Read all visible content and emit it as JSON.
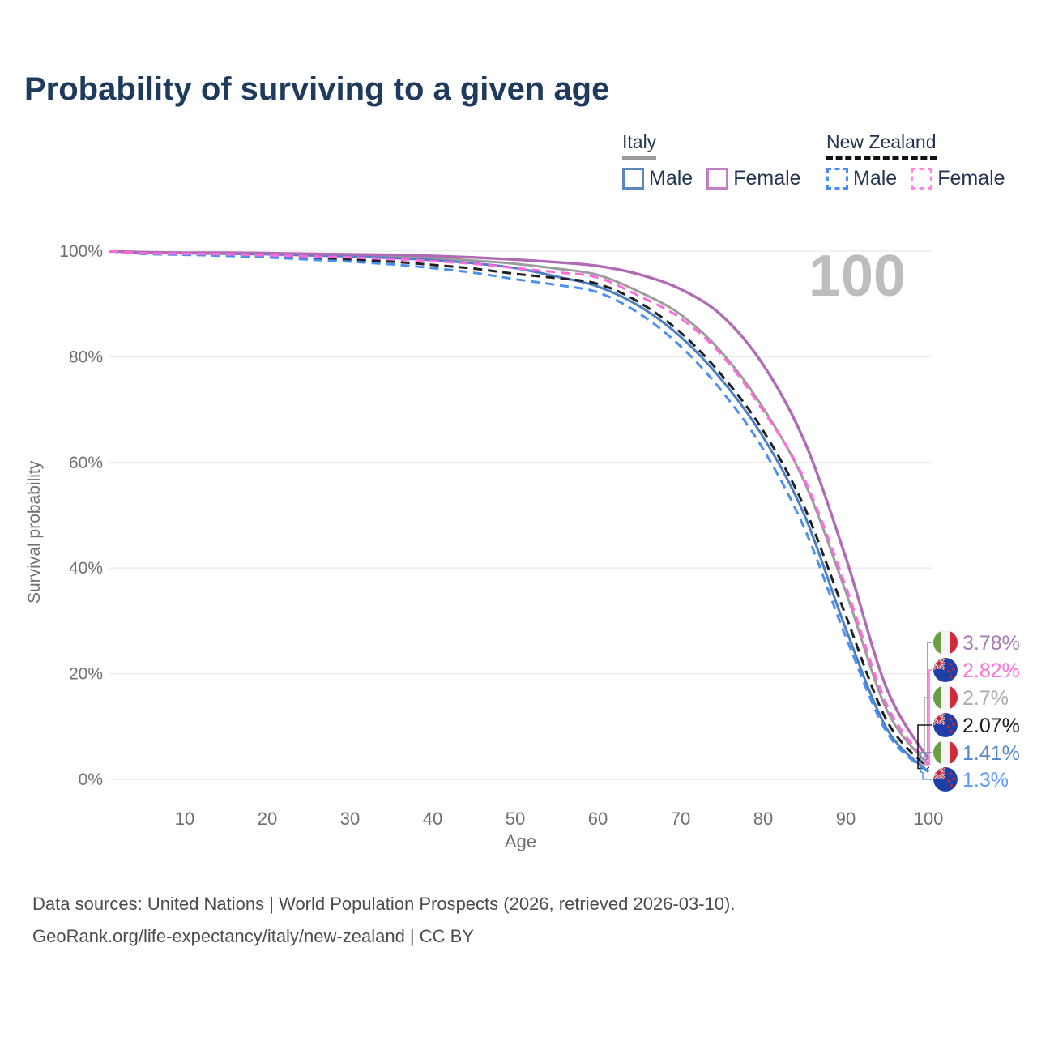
{
  "page": {
    "title": "Probability of surviving to a given age"
  },
  "legend": {
    "groups": [
      {
        "country": "Italy",
        "line_style": "solid",
        "underline_color": "#9b9b9b",
        "items": [
          {
            "label": "Male",
            "color": "#5b87c0"
          },
          {
            "label": "Female",
            "color": "#c17fc0"
          }
        ]
      },
      {
        "country": "New Zealand",
        "line_style": "dashed",
        "underline_color": "#111111",
        "items": [
          {
            "label": "Male",
            "color": "#4a8df0"
          },
          {
            "label": "Female",
            "color": "#ff85e2"
          }
        ]
      }
    ]
  },
  "watermark": "100",
  "footer": {
    "line1": "Data sources: United Nations | World Population Prospects (2026, retrieved 2026-03-10).",
    "line2": "GeoRank.org/life-expectancy/italy/new-zealand | CC BY"
  },
  "chart_data": {
    "type": "line",
    "title": "Probability of surviving to a given age",
    "xlabel": "Age",
    "ylabel": "Survival probability",
    "xlim": [
      0,
      100
    ],
    "ylim": [
      0,
      100
    ],
    "x_ticks": [
      10,
      20,
      30,
      40,
      50,
      60,
      70,
      80,
      90,
      100
    ],
    "y_ticks": [
      0,
      20,
      40,
      60,
      80,
      100
    ],
    "y_tick_suffix": "%",
    "grid": "horizontal",
    "legend_position": "top-right",
    "x": [
      0,
      5,
      10,
      15,
      20,
      25,
      30,
      35,
      40,
      45,
      50,
      55,
      60,
      65,
      70,
      75,
      80,
      85,
      90,
      95,
      100
    ],
    "series": [
      {
        "key": "italy-female",
        "name": "Italy Female",
        "country": "Italy",
        "sex": "Female",
        "color": "#b16ab3",
        "dash": "solid",
        "end_label": "3.78%",
        "label_color": "#a87ab5",
        "flag": "italy",
        "values": [
          100,
          99.8,
          99.7,
          99.7,
          99.6,
          99.5,
          99.4,
          99.3,
          99.1,
          98.8,
          98.4,
          97.9,
          97.2,
          95.6,
          92.8,
          87.8,
          78.5,
          64,
          42,
          17,
          3.78
        ]
      },
      {
        "key": "new-zealand-female",
        "name": "New Zealand Female",
        "country": "New Zealand",
        "sex": "Female",
        "color": "#ff6ade",
        "dash": "dashed",
        "end_label": "2.82%",
        "label_color": "#ff70dd",
        "flag": "new-zealand",
        "values": [
          100,
          99.6,
          99.5,
          99.4,
          99.2,
          99.0,
          98.8,
          98.5,
          98.1,
          97.6,
          96.8,
          96.0,
          95.0,
          91.5,
          87.3,
          80.3,
          69.8,
          56.8,
          36.5,
          14.0,
          2.82
        ]
      },
      {
        "key": "italy-both",
        "name": "Italy Both sexes",
        "country": "Italy",
        "sex": "Both",
        "color": "#9c9c9c",
        "dash": "solid",
        "end_label": "2.7%",
        "label_color": "#a9a9a9",
        "flag": "italy",
        "values": [
          100,
          99.7,
          99.7,
          99.6,
          99.5,
          99.4,
          99.2,
          99.0,
          98.7,
          98.2,
          97.6,
          96.7,
          95.5,
          92.3,
          88.0,
          80.8,
          70.3,
          56.3,
          35.5,
          13.0,
          2.7
        ]
      },
      {
        "key": "new-zealand-both",
        "name": "New Zealand Both sexes",
        "country": "New Zealand",
        "sex": "Both",
        "color": "#1f1f1f",
        "dash": "dashed",
        "end_label": "2.07%",
        "label_color": "#1b1b1b",
        "flag": "new-zealand",
        "values": [
          100,
          99.5,
          99.4,
          99.2,
          99.0,
          98.7,
          98.4,
          98.0,
          97.4,
          96.7,
          95.7,
          94.9,
          93.8,
          90.3,
          84.6,
          76.5,
          66.0,
          51.5,
          31.0,
          11.0,
          2.07
        ]
      },
      {
        "key": "italy-male",
        "name": "Italy Male",
        "country": "Italy",
        "sex": "Male",
        "color": "#4d7fc4",
        "dash": "solid",
        "end_label": "1.41%",
        "label_color": "#5787c9",
        "flag": "italy",
        "values": [
          100,
          99.7,
          99.6,
          99.5,
          99.4,
          99.2,
          99.0,
          98.7,
          98.3,
          97.7,
          96.8,
          95.2,
          93.3,
          89.6,
          83.8,
          75.6,
          64.8,
          50.0,
          28.5,
          9.5,
          1.41
        ]
      },
      {
        "key": "new-zealand-male",
        "name": "New Zealand Male",
        "country": "New Zealand",
        "sex": "Male",
        "color": "#4b90f0",
        "dash": "dashed",
        "end_label": "1.3%",
        "label_color": "#5e9cf5",
        "flag": "new-zealand",
        "values": [
          100,
          99.5,
          99.3,
          99.1,
          98.8,
          98.4,
          98.0,
          97.5,
          96.8,
          95.9,
          94.7,
          93.6,
          92.2,
          88.2,
          82.0,
          73.5,
          62.5,
          47.5,
          27.0,
          8.8,
          1.3
        ]
      }
    ],
    "colors": {
      "grid": "#e9e9e9",
      "tick_text": "#6f6f6f",
      "watermark": "#bdbdbd",
      "italy_green": "#6b9d45",
      "italy_red": "#cf2b3a",
      "nz_blue": "#1e40a6",
      "nz_red": "#cc2233"
    }
  }
}
